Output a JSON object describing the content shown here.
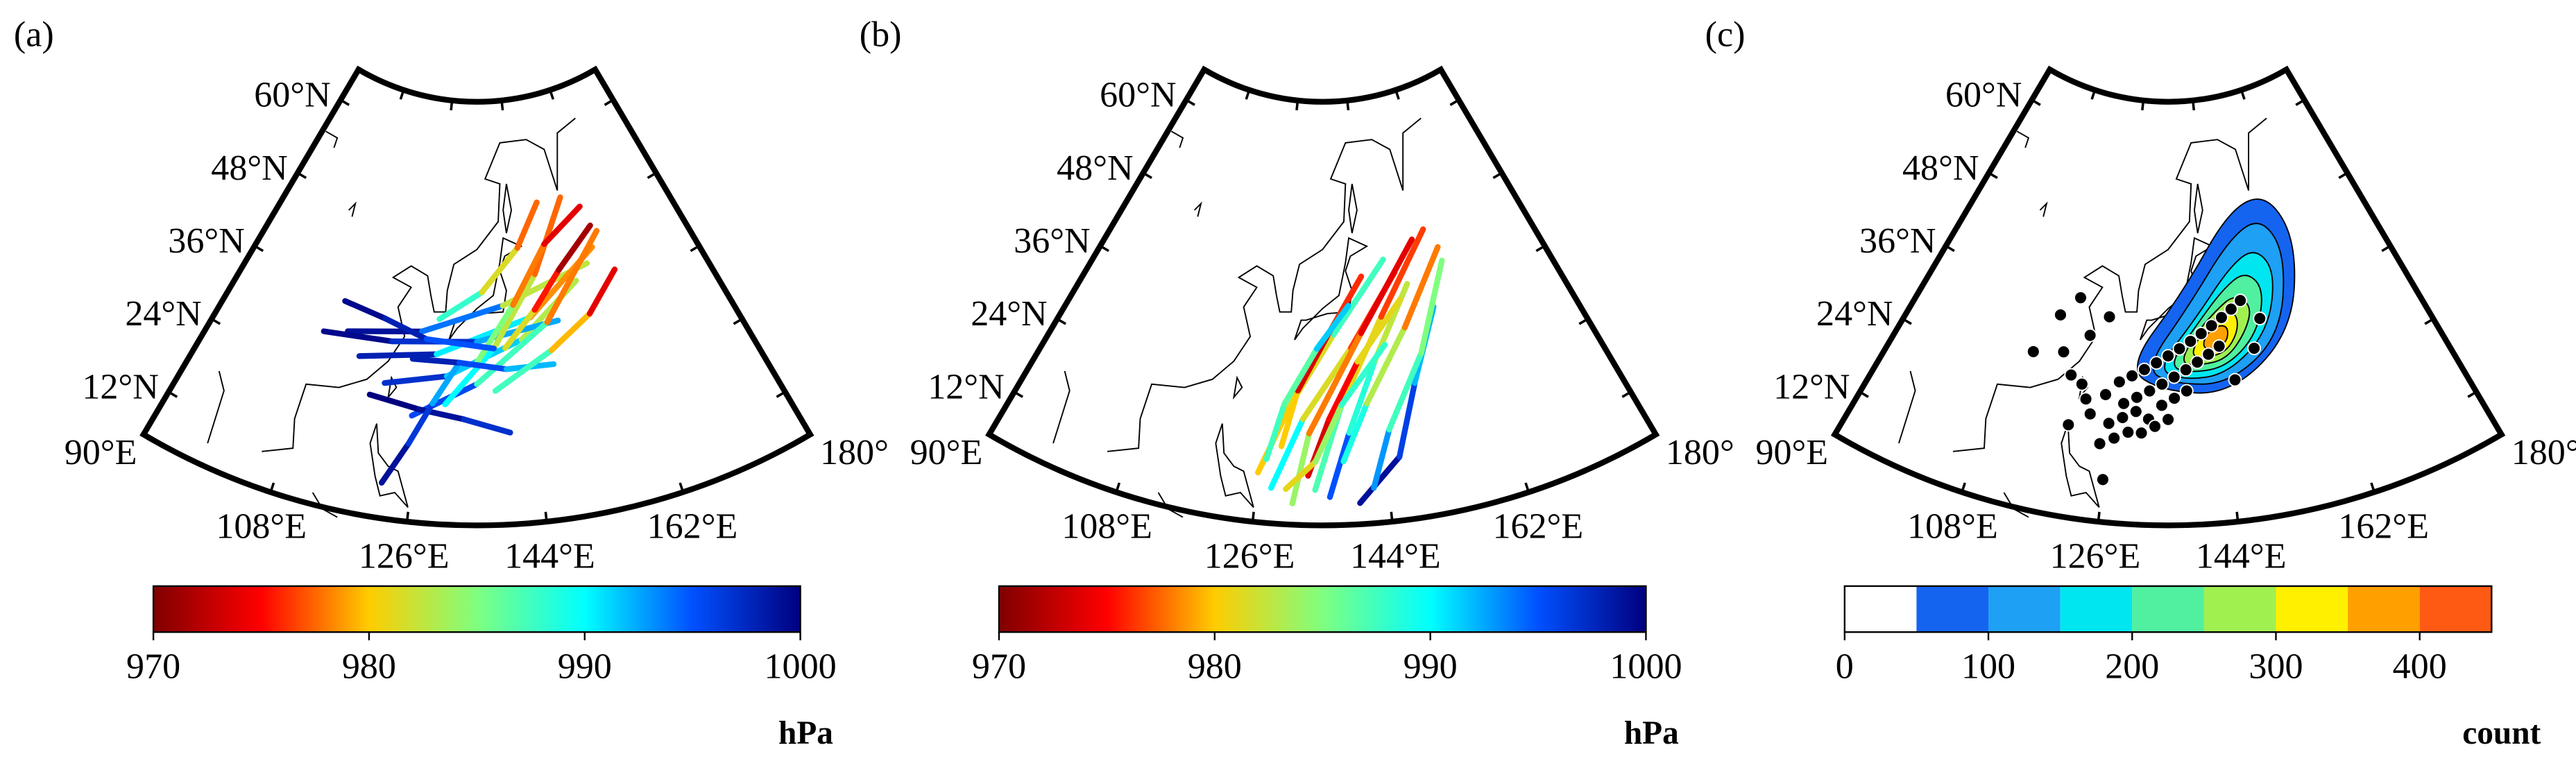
{
  "lat_range": [
    5,
    65
  ],
  "lon_range": [
    90,
    180
  ],
  "lat_ticks": [
    {
      "value": 12,
      "label": "12°N"
    },
    {
      "value": 24,
      "label": "24°N"
    },
    {
      "value": 36,
      "label": "36°N"
    },
    {
      "value": 48,
      "label": "48°N"
    },
    {
      "value": 60,
      "label": "60°N"
    }
  ],
  "lon_ticks": [
    {
      "value": 90,
      "label": "90°E"
    },
    {
      "value": 108,
      "label": "108°E"
    },
    {
      "value": 126,
      "label": "126°E"
    },
    {
      "value": 144,
      "label": "144°E"
    },
    {
      "value": 162,
      "label": "162°E"
    },
    {
      "value": 180,
      "label": "180°"
    }
  ],
  "panels": [
    {
      "label": "(a)",
      "type": "tracks",
      "colorbar": {
        "unit": "hPa",
        "range": [
          970,
          1000
        ],
        "ticks": [
          970,
          980,
          990,
          1000
        ],
        "colormap": [
          "#7f0000",
          "#ff0000",
          "#ffcc00",
          "#7fff7f",
          "#00ffff",
          "#0050ff",
          "#00007f"
        ]
      },
      "tracks": [
        {
          "lon": [
            112,
            125,
            140,
            158
          ],
          "lat": [
            30,
            32,
            36,
            40
          ],
          "pressure": [
            1000,
            998,
            990,
            975
          ]
        },
        {
          "lon": [
            115,
            128,
            145,
            160
          ],
          "lat": [
            27,
            29,
            34,
            42
          ],
          "pressure": [
            1000,
            996,
            985,
            972
          ]
        },
        {
          "lon": [
            120,
            130,
            143,
            155
          ],
          "lat": [
            24,
            26,
            31,
            38
          ],
          "pressure": [
            999,
            995,
            988,
            978
          ]
        },
        {
          "lon": [
            108,
            120,
            135,
            150
          ],
          "lat": [
            29,
            30,
            31,
            33
          ],
          "pressure": [
            1000,
            999,
            995,
            990
          ]
        },
        {
          "lon": [
            125,
            135,
            148,
            162
          ],
          "lat": [
            20,
            25,
            33,
            44
          ],
          "pressure": [
            998,
            993,
            982,
            974
          ]
        },
        {
          "lon": [
            130,
            138,
            147,
            156
          ],
          "lat": [
            22,
            30,
            40,
            50
          ],
          "pressure": [
            995,
            985,
            980,
            975
          ]
        },
        {
          "lon": [
            135,
            142,
            150,
            160
          ],
          "lat": [
            28,
            36,
            44,
            48
          ],
          "pressure": [
            990,
            980,
            976,
            972
          ]
        },
        {
          "lon": [
            118,
            126,
            133,
            140
          ],
          "lat": [
            22,
            21,
            20,
            18
          ],
          "pressure": [
            1000,
            1000,
            998,
            996
          ]
        },
        {
          "lon": [
            122,
            125,
            128,
            132
          ],
          "lat": [
            10,
            16,
            22,
            28
          ],
          "pressure": [
            1000,
            998,
            995,
            990
          ]
        },
        {
          "lon": [
            110,
            118,
            126,
            138
          ],
          "lat": [
            34,
            33,
            31,
            30
          ],
          "pressure": [
            1000,
            999,
            997,
            993
          ]
        },
        {
          "lon": [
            140,
            146,
            152,
            161
          ],
          "lat": [
            30,
            35,
            40,
            45
          ],
          "pressure": [
            985,
            978,
            973,
            970
          ]
        },
        {
          "lon": [
            128,
            136,
            144,
            150
          ],
          "lat": [
            34,
            38,
            44,
            50
          ],
          "pressure": [
            992,
            984,
            979,
            976
          ]
        },
        {
          "lon": [
            124,
            132,
            140,
            148
          ],
          "lat": [
            28,
            28,
            27,
            27
          ],
          "pressure": [
            999,
            997,
            994,
            990
          ]
        },
        {
          "lon": [
            138,
            148,
            156,
            163
          ],
          "lat": [
            24,
            29,
            33,
            38
          ],
          "pressure": [
            992,
            983,
            976,
            972
          ]
        }
      ]
    },
    {
      "label": "(b)",
      "type": "tracks",
      "colorbar": {
        "unit": "hPa",
        "range": [
          970,
          1000
        ],
        "ticks": [
          970,
          980,
          990,
          1000
        ],
        "colormap": [
          "#7f0000",
          "#ff0000",
          "#ffcc00",
          "#7fff7f",
          "#00ffff",
          "#0050ff",
          "#00007f"
        ]
      },
      "tracks": [
        {
          "lon": [
            128,
            132,
            140,
            150
          ],
          "lat": [
            10,
            20,
            30,
            40
          ],
          "pressure": [
            995,
            985,
            978,
            975
          ]
        },
        {
          "lon": [
            131,
            133,
            142,
            155
          ],
          "lat": [
            8,
            18,
            32,
            44
          ],
          "pressure": [
            988,
            980,
            976,
            972
          ]
        },
        {
          "lon": [
            134,
            138,
            146,
            158
          ],
          "lat": [
            10,
            22,
            34,
            45
          ],
          "pressure": [
            990,
            984,
            978,
            975
          ]
        },
        {
          "lon": [
            126,
            130,
            137,
            148
          ],
          "lat": [
            12,
            22,
            32,
            42
          ],
          "pressure": [
            982,
            978,
            985,
            990
          ]
        },
        {
          "lon": [
            136,
            139,
            144,
            152
          ],
          "lat": [
            9,
            18,
            28,
            38
          ],
          "pressure": [
            998,
            992,
            985,
            980
          ]
        },
        {
          "lon": [
            140,
            146,
            150,
            156
          ],
          "lat": [
            8,
            14,
            24,
            34
          ],
          "pressure": [
            1000,
            998,
            994,
            990
          ]
        },
        {
          "lon": [
            129,
            131,
            136,
            143
          ],
          "lat": [
            16,
            24,
            32,
            40
          ],
          "pressure": [
            985,
            975,
            972,
            980
          ]
        },
        {
          "lon": [
            133,
            136,
            141,
            150
          ],
          "lat": [
            12,
            20,
            28,
            36
          ],
          "pressure": [
            975,
            972,
            978,
            984
          ]
        },
        {
          "lon": [
            138,
            142,
            150,
            160
          ],
          "lat": [
            14,
            22,
            32,
            42
          ],
          "pressure": [
            992,
            986,
            980,
            976
          ]
        },
        {
          "lon": [
            127,
            129,
            134,
            140
          ],
          "lat": [
            14,
            22,
            30,
            36
          ],
          "pressure": [
            990,
            985,
            988,
            995
          ]
        },
        {
          "lon": [
            142,
            145,
            152,
            160
          ],
          "lat": [
            10,
            18,
            28,
            40
          ],
          "pressure": [
            996,
            990,
            985,
            985
          ]
        },
        {
          "lon": [
            130,
            134,
            138,
            146
          ],
          "lat": [
            10,
            14,
            22,
            30
          ],
          "pressure": [
            980,
            982,
            986,
            990
          ]
        }
      ]
    },
    {
      "label": "(c)",
      "type": "density",
      "colorbar": {
        "unit": "count",
        "range": [
          0,
          450
        ],
        "ticks": [
          0,
          100,
          200,
          300,
          400
        ],
        "levels": [
          0,
          50,
          100,
          150,
          200,
          250,
          300,
          350,
          400,
          450
        ],
        "level_colors": [
          "#ffffff",
          "#1464f0",
          "#1ea0f5",
          "#00e6f0",
          "#50f0a0",
          "#a0f050",
          "#fff000",
          "#ffa000",
          "#ff5a14"
        ]
      },
      "contours": [
        {
          "level": 50,
          "lon": [
            128,
            134,
            145,
            157,
            163,
            160,
            150,
            138
          ],
          "lat": [
            27,
            24,
            23,
            30,
            42,
            50,
            49,
            38
          ]
        },
        {
          "level": 100,
          "lon": [
            131,
            136,
            145,
            155,
            160,
            157,
            149,
            139
          ],
          "lat": [
            27,
            25,
            24.5,
            30,
            41,
            47,
            45,
            36
          ]
        },
        {
          "level": 150,
          "lon": [
            133,
            138,
            145,
            153,
            157,
            154,
            148,
            140
          ],
          "lat": [
            27,
            25.5,
            26,
            31,
            39,
            43,
            41,
            34
          ]
        },
        {
          "level": 200,
          "lon": [
            135,
            139,
            145,
            151,
            154,
            151,
            146,
            140
          ],
          "lat": [
            27.5,
            26.5,
            27,
            31,
            37,
            40,
            38,
            33
          ]
        },
        {
          "level": 250,
          "lon": [
            137,
            140,
            145,
            149,
            151,
            148,
            144,
            140
          ],
          "lat": [
            28,
            27.5,
            28,
            31.5,
            35,
            37,
            35,
            32
          ]
        },
        {
          "level": 300,
          "lon": [
            139,
            141,
            145,
            147.5,
            148,
            146,
            143,
            140.5
          ],
          "lat": [
            29,
            28.5,
            29,
            31.5,
            34,
            35,
            33.5,
            31.5
          ]
        },
        {
          "level": 350,
          "lon": [
            141,
            143,
            145.5,
            146,
            144.5,
            142
          ],
          "lat": [
            30,
            29.5,
            30.5,
            32.5,
            33,
            32
          ]
        }
      ],
      "points": {
        "lon": [
          115,
          118,
          121,
          117,
          124,
          112,
          119,
          122,
          120,
          125,
          127,
          129,
          131,
          133,
          135,
          137,
          139,
          141,
          143,
          145,
          147,
          149,
          128,
          130,
          132,
          134,
          136,
          138,
          140,
          142,
          144,
          126,
          128,
          130,
          132,
          134,
          136,
          138,
          125,
          127,
          129,
          131,
          133,
          135,
          150,
          152,
          146,
          126,
          123,
          121
        ],
        "lat": [
          33,
          36,
          31,
          28,
          34,
          27,
          25,
          22,
          18,
          23,
          25,
          26,
          27,
          28,
          29,
          30,
          31,
          32,
          33,
          34,
          35,
          36,
          22,
          23,
          24,
          25,
          26,
          27,
          28,
          29,
          30,
          19,
          20,
          21,
          20,
          22,
          23,
          24,
          16,
          17,
          18,
          18,
          19,
          20,
          29,
          33,
          25,
          11,
          20,
          24
        ]
      }
    }
  ]
}
